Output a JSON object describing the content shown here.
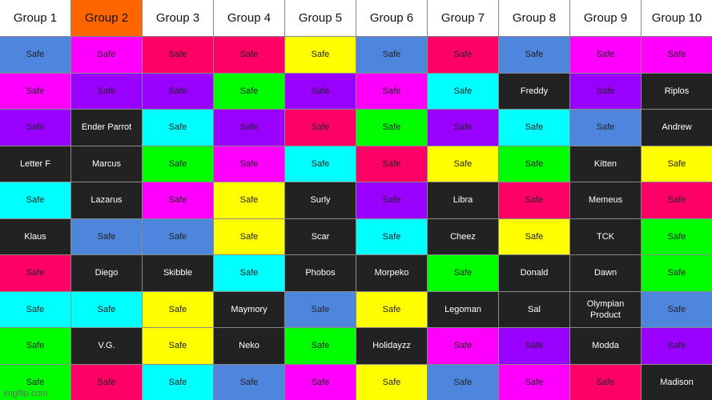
{
  "colors": {
    "blue": "#4f86dd",
    "magenta": "#ff00ff",
    "red": "#ff0066",
    "yellow": "#ffff00",
    "green": "#00ff00",
    "purple": "#9900ff",
    "cyan": "#00ffff",
    "dark": "#222222",
    "header": "#ffffff",
    "header_active": "#ff6600"
  },
  "headers": [
    "Group 1",
    "Group 2",
    "Group 3",
    "Group 4",
    "Group 5",
    "Group 6",
    "Group 7",
    "Group 8",
    "Group 9",
    "Group 10"
  ],
  "active_header_index": 1,
  "rows": [
    [
      [
        "Safe",
        "blue"
      ],
      [
        "Safe",
        "magenta"
      ],
      [
        "Safe",
        "red"
      ],
      [
        "Safe",
        "red"
      ],
      [
        "Safe",
        "yellow"
      ],
      [
        "Safe",
        "blue"
      ],
      [
        "Safe",
        "red"
      ],
      [
        "Safe",
        "blue"
      ],
      [
        "Safe",
        "magenta"
      ],
      [
        "Safe",
        "magenta"
      ]
    ],
    [
      [
        "Safe",
        "magenta"
      ],
      [
        "Safe",
        "purple"
      ],
      [
        "Safe",
        "purple"
      ],
      [
        "Safe",
        "green"
      ],
      [
        "Safe",
        "purple"
      ],
      [
        "Safe",
        "magenta"
      ],
      [
        "Safe",
        "cyan"
      ],
      [
        "Freddy",
        "dark"
      ],
      [
        "Safe",
        "purple"
      ],
      [
        "Riplos",
        "dark"
      ]
    ],
    [
      [
        "Safe",
        "purple"
      ],
      [
        "Ender Parrot",
        "dark"
      ],
      [
        "Safe",
        "cyan"
      ],
      [
        "Safe",
        "purple"
      ],
      [
        "Safe",
        "red"
      ],
      [
        "Safe",
        "green"
      ],
      [
        "Safe",
        "purple"
      ],
      [
        "Safe",
        "cyan"
      ],
      [
        "Safe",
        "blue"
      ],
      [
        "Andrew",
        "dark"
      ]
    ],
    [
      [
        "Letter F",
        "dark"
      ],
      [
        "Marcus",
        "dark"
      ],
      [
        "Safe",
        "green"
      ],
      [
        "Safe",
        "magenta"
      ],
      [
        "Safe",
        "cyan"
      ],
      [
        "Safe",
        "red"
      ],
      [
        "Safe",
        "yellow"
      ],
      [
        "Safe",
        "green"
      ],
      [
        "Kitten",
        "dark"
      ],
      [
        "Safe",
        "yellow"
      ]
    ],
    [
      [
        "Safe",
        "cyan"
      ],
      [
        "Lazarus",
        "dark"
      ],
      [
        "Safe",
        "magenta"
      ],
      [
        "Safe",
        "yellow"
      ],
      [
        "Surly",
        "dark"
      ],
      [
        "Safe",
        "purple"
      ],
      [
        "Libra",
        "dark"
      ],
      [
        "Safe",
        "red"
      ],
      [
        "Memeus",
        "dark"
      ],
      [
        "Safe",
        "red"
      ]
    ],
    [
      [
        "Klaus",
        "dark"
      ],
      [
        "Safe",
        "blue"
      ],
      [
        "Safe",
        "blue"
      ],
      [
        "Safe",
        "yellow"
      ],
      [
        "Scar",
        "dark"
      ],
      [
        "Safe",
        "cyan"
      ],
      [
        "Cheez",
        "dark"
      ],
      [
        "Safe",
        "yellow"
      ],
      [
        "TCK",
        "dark"
      ],
      [
        "Safe",
        "green"
      ]
    ],
    [
      [
        "Safe",
        "red"
      ],
      [
        "Diego",
        "dark"
      ],
      [
        "Skibble",
        "dark"
      ],
      [
        "Safe",
        "cyan"
      ],
      [
        "Phobos",
        "dark"
      ],
      [
        "Morpeko",
        "dark"
      ],
      [
        "Safe",
        "green"
      ],
      [
        "Donald",
        "dark"
      ],
      [
        "Dawn",
        "dark"
      ],
      [
        "Safe",
        "green"
      ]
    ],
    [
      [
        "Safe",
        "cyan"
      ],
      [
        "Safe",
        "cyan"
      ],
      [
        "Safe",
        "yellow"
      ],
      [
        "Maymory",
        "dark"
      ],
      [
        "Safe",
        "blue"
      ],
      [
        "Safe",
        "yellow"
      ],
      [
        "Legoman",
        "dark"
      ],
      [
        "Sal",
        "dark"
      ],
      [
        "Olympian Product",
        "dark"
      ],
      [
        "Safe",
        "blue"
      ]
    ],
    [
      [
        "Safe",
        "green"
      ],
      [
        "V.G.",
        "dark"
      ],
      [
        "Safe",
        "yellow"
      ],
      [
        "Neko",
        "dark"
      ],
      [
        "Safe",
        "green"
      ],
      [
        "Holidayzz",
        "dark"
      ],
      [
        "Safe",
        "magenta"
      ],
      [
        "Safe",
        "purple"
      ],
      [
        "Modda",
        "dark"
      ],
      [
        "Safe",
        "purple"
      ]
    ],
    [
      [
        "Safe",
        "green"
      ],
      [
        "Safe",
        "red"
      ],
      [
        "Safe",
        "cyan"
      ],
      [
        "Safe",
        "blue"
      ],
      [
        "Safe",
        "magenta"
      ],
      [
        "Safe",
        "yellow"
      ],
      [
        "Safe",
        "blue"
      ],
      [
        "Safe",
        "magenta"
      ],
      [
        "Safe",
        "red"
      ],
      [
        "Madison",
        "dark"
      ]
    ]
  ],
  "watermark": "imgflip.com"
}
